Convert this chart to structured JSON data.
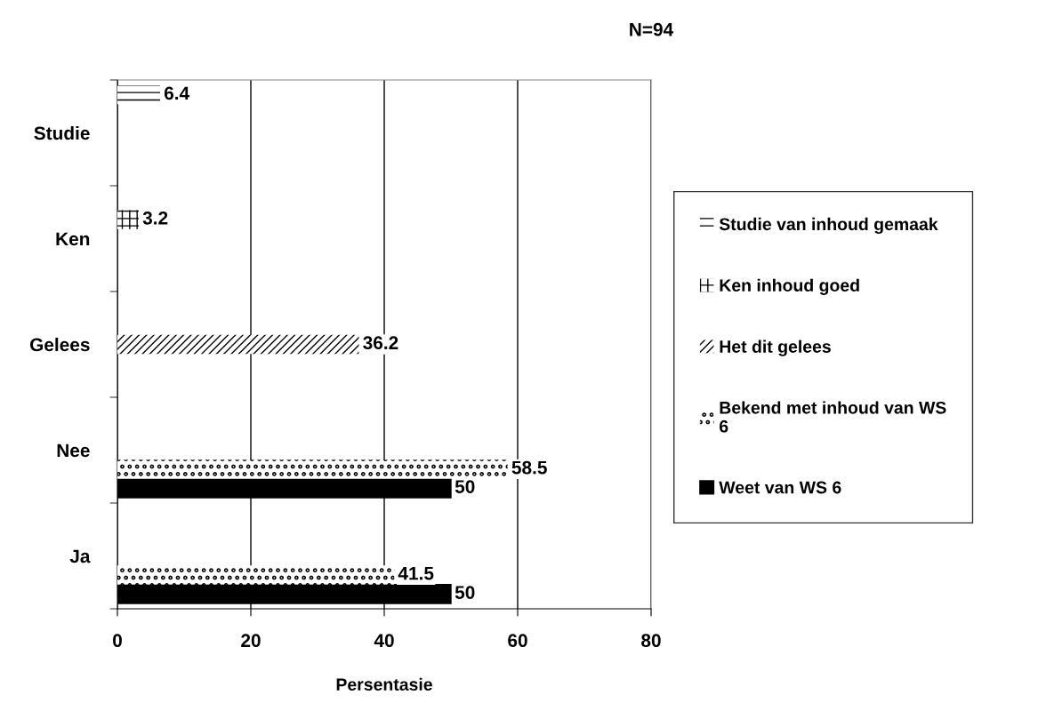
{
  "chart_data": {
    "type": "bar",
    "orientation": "horizontal",
    "title": "N=94",
    "xlabel": "Persentasie",
    "categories": [
      "Studie",
      "Ken",
      "Gelees",
      "Nee",
      "Ja"
    ],
    "series": [
      {
        "name": "Weet van WS 6",
        "color": "#000000",
        "values": [
          null,
          null,
          null,
          50,
          50
        ]
      },
      {
        "name": "Bekend met inhoud van WS 6",
        "color": "#ffffff",
        "values": [
          null,
          null,
          null,
          58.5,
          41.5
        ]
      },
      {
        "name": "Het dit gelees",
        "color": "#ffffff",
        "values": [
          null,
          null,
          36.2,
          null,
          null
        ]
      },
      {
        "name": "Ken inhoud goed",
        "color": "#ffffff",
        "values": [
          null,
          3.2,
          null,
          null,
          null
        ]
      },
      {
        "name": "Studie van inhoud gemaak",
        "color": "#ffffff",
        "values": [
          6.4,
          null,
          null,
          null,
          null
        ]
      }
    ],
    "xlim": [
      0,
      80
    ],
    "xticks": [
      0,
      20,
      40,
      60,
      80
    ],
    "grid": "x",
    "legend": "right",
    "data_labels": true
  }
}
